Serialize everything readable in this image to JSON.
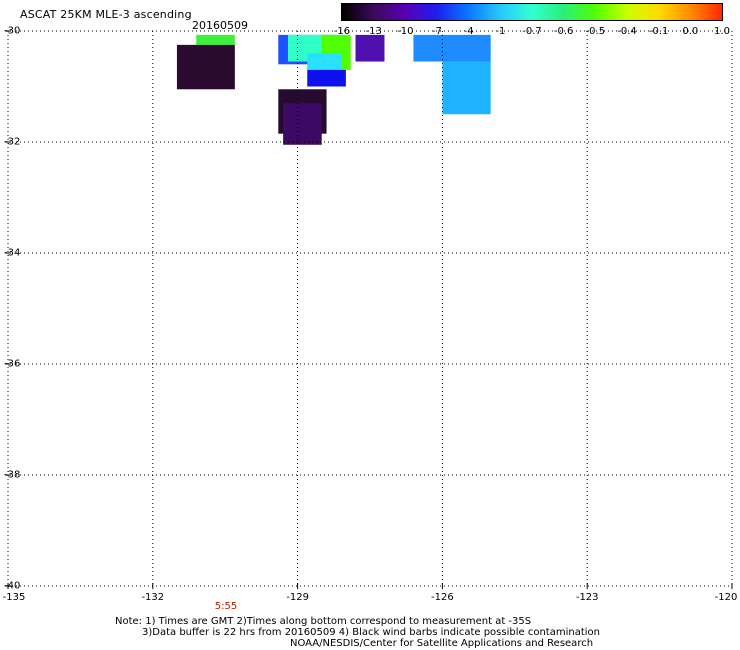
{
  "header": {
    "title": "ASCAT 25KM MLE-3 ascending",
    "date": "20160509"
  },
  "colorbar": {
    "labels": [
      "-16",
      "-13",
      "-10",
      "-7",
      "-4",
      "-1",
      "-0.7",
      "-0.6",
      "-0.5",
      "-0.4",
      "-0.1",
      "0.0",
      "1.0"
    ],
    "colors": [
      "#000000",
      "#3a0a5a",
      "#5a00b4",
      "#1e1ef0",
      "#0a78ff",
      "#28c8ff",
      "#32ffd2",
      "#28f078",
      "#50ff00",
      "#c8ff00",
      "#ffdc00",
      "#ff8c00",
      "#ff2800"
    ]
  },
  "axes": {
    "lat_labels": [
      "-30",
      "-32",
      "-34",
      "-36",
      "-38",
      "-40"
    ],
    "lon_labels": [
      "-135",
      "-132",
      "-129",
      "-126",
      "-123",
      "-120"
    ],
    "lat_range": [
      -40,
      -30
    ],
    "lon_range": [
      -135,
      -120
    ],
    "grid": "dotted"
  },
  "time_label": "5:55",
  "notes": {
    "line1": "Note: 1) Times are GMT 2)Times along bottom correspond to measurement at -35S",
    "line2": "3)Data buffer is 22 hrs from 20160509 4) Black wind barbs indicate possible contamination",
    "line3": "NOAA/NESDIS/Center for Satellite Applications and Research"
  },
  "swath_cells": [
    {
      "lon": [
        -131.1,
        -130.3
      ],
      "lat": [
        -30.07,
        -30.25
      ],
      "color": "#3cf03c"
    },
    {
      "lon": [
        -131.5,
        -130.3
      ],
      "lat": [
        -30.25,
        -31.05
      ],
      "color": "#2a0a2e"
    },
    {
      "lon": [
        -129.4,
        -128.2
      ],
      "lat": [
        -30.07,
        -30.6
      ],
      "color": "#1e50ff"
    },
    {
      "lon": [
        -129.2,
        -128.2
      ],
      "lat": [
        -30.07,
        -30.55
      ],
      "color": "#30ffc8"
    },
    {
      "lon": [
        -128.5,
        -127.9
      ],
      "lat": [
        -30.07,
        -30.7
      ],
      "color": "#50ff00"
    },
    {
      "lon": [
        -128.8,
        -128.1
      ],
      "lat": [
        -30.4,
        -30.7
      ],
      "color": "#28e0ff"
    },
    {
      "lon": [
        -128.8,
        -128.0
      ],
      "lat": [
        -30.7,
        -31.0
      ],
      "color": "#0f10f0"
    },
    {
      "lon": [
        -127.8,
        -127.2
      ],
      "lat": [
        -30.07,
        -30.55
      ],
      "color": "#5010b0"
    },
    {
      "lon": [
        -126.6,
        -125.0
      ],
      "lat": [
        -30.07,
        -30.55
      ],
      "color": "#1e8cff"
    },
    {
      "lon": [
        -126.0,
        -125.0
      ],
      "lat": [
        -30.55,
        -31.5
      ],
      "color": "#1eb4ff"
    },
    {
      "lon": [
        -129.4,
        -128.4
      ],
      "lat": [
        -31.05,
        -31.85
      ],
      "color": "#260a30"
    },
    {
      "lon": [
        -129.3,
        -128.5
      ],
      "lat": [
        -31.3,
        -32.05
      ],
      "color": "#3c0a64"
    }
  ]
}
